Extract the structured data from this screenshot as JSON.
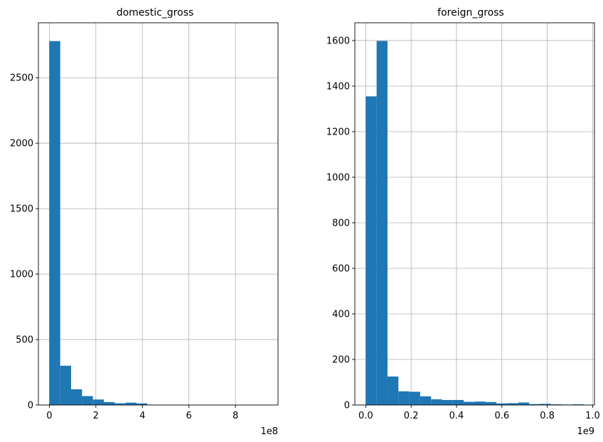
{
  "chart_data": [
    {
      "type": "bar",
      "title": "domestic_gross",
      "xlabel": "",
      "ylabel": "",
      "offset_text": "1e8",
      "bin_edges": [
        0,
        0.4682,
        0.9364,
        1.4046,
        1.8728,
        2.341,
        2.8092,
        3.2774,
        3.7456,
        4.2138,
        4.682,
        5.1502,
        5.6184,
        6.0866,
        6.5548,
        7.023,
        7.4912,
        7.9594,
        8.4276,
        8.8958,
        9.364
      ],
      "values": [
        2780,
        300,
        120,
        68,
        42,
        22,
        13,
        18,
        12,
        1,
        2,
        1,
        1,
        0,
        1,
        0,
        0,
        0,
        0,
        1
      ],
      "xlim": [
        -0.47,
        9.83
      ],
      "ylim": [
        0,
        2920
      ],
      "xticks": [
        0,
        2,
        4,
        6,
        8
      ],
      "yticks": [
        0,
        500,
        1000,
        1500,
        2000,
        2500
      ],
      "grid": true,
      "bar_color": "#1f77b4"
    },
    {
      "type": "bar",
      "title": "foreign_gross",
      "xlabel": "",
      "ylabel": "",
      "offset_text": "1e9",
      "bin_edges": [
        0,
        0.048,
        0.096,
        0.144,
        0.192,
        0.24,
        0.288,
        0.336,
        0.384,
        0.432,
        0.48,
        0.528,
        0.576,
        0.624,
        0.672,
        0.72,
        0.768,
        0.816,
        0.864,
        0.912,
        0.96
      ],
      "values": [
        1355,
        1598,
        125,
        60,
        58,
        38,
        25,
        22,
        22,
        14,
        15,
        13,
        7,
        8,
        11,
        4,
        5,
        3,
        2,
        3
      ],
      "xlim": [
        -0.048,
        1.008
      ],
      "ylim": [
        0,
        1678
      ],
      "xticks": [
        0.0,
        0.2,
        0.4,
        0.6,
        0.8,
        1.0
      ],
      "yticks": [
        0,
        200,
        400,
        600,
        800,
        1000,
        1200,
        1400,
        1600
      ],
      "grid": true,
      "bar_color": "#1f77b4"
    }
  ]
}
